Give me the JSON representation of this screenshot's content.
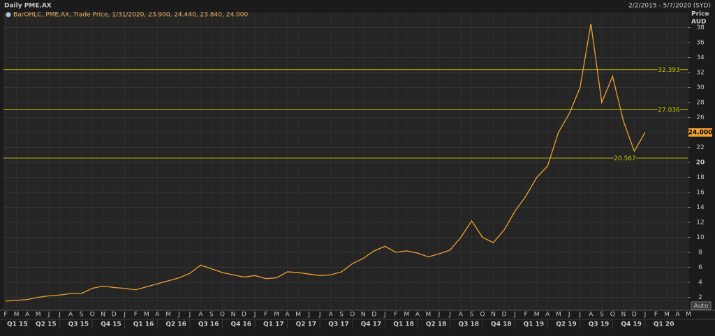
{
  "chart_data": {
    "type": "line",
    "title": "Daily PME.AX",
    "date_range": "2/2/2015 - 5/7/2020 (SYD)",
    "legend_text": "BarOHLC, PME.AX, Trade Price, 1/31/2020, 23.900, 24.440, 23.840, 24.000",
    "y_axis_label": [
      "Price",
      "AUD"
    ],
    "auto_button": "Auto",
    "x": [
      "2015-02",
      "2015-03",
      "2015-04",
      "2015-05",
      "2015-06",
      "2015-07",
      "2015-08",
      "2015-09",
      "2015-10",
      "2015-11",
      "2015-12",
      "2016-01",
      "2016-02",
      "2016-03",
      "2016-04",
      "2016-05",
      "2016-06",
      "2016-07",
      "2016-08",
      "2016-09",
      "2016-10",
      "2016-11",
      "2016-12",
      "2017-01",
      "2017-02",
      "2017-03",
      "2017-04",
      "2017-05",
      "2017-06",
      "2017-07",
      "2017-08",
      "2017-09",
      "2017-10",
      "2017-11",
      "2017-12",
      "2018-01",
      "2018-02",
      "2018-03",
      "2018-04",
      "2018-05",
      "2018-06",
      "2018-07",
      "2018-08",
      "2018-09",
      "2018-10",
      "2018-11",
      "2018-12",
      "2019-01",
      "2019-02",
      "2019-03",
      "2019-04",
      "2019-05",
      "2019-06",
      "2019-07",
      "2019-08",
      "2019-09",
      "2019-10",
      "2019-11",
      "2019-12",
      "2020-01"
    ],
    "series": [
      {
        "name": "PME.AX",
        "color": "#f0a030",
        "values": [
          1.5,
          1.6,
          1.7,
          2.0,
          2.2,
          2.3,
          2.5,
          2.5,
          3.2,
          3.5,
          3.3,
          3.2,
          3.0,
          3.4,
          3.8,
          4.2,
          4.6,
          5.2,
          6.3,
          5.8,
          5.3,
          5.0,
          4.7,
          4.9,
          4.5,
          4.6,
          5.4,
          5.3,
          5.1,
          4.9,
          5.0,
          5.4,
          6.5,
          7.2,
          8.2,
          8.8,
          8.0,
          8.2,
          7.9,
          7.4,
          7.8,
          8.3,
          10.0,
          12.2,
          10.0,
          9.3,
          11.0,
          13.5,
          15.5,
          18.0,
          19.5,
          24.0,
          26.5,
          30.0,
          38.5,
          28.0,
          31.5,
          25.5,
          21.5,
          24.0
        ],
        "value_labels": [
          null,
          null,
          null,
          null,
          null,
          null,
          null,
          null,
          null,
          null,
          null,
          null,
          null,
          null,
          null,
          null,
          null,
          null,
          null,
          null,
          null,
          null,
          null,
          null,
          null,
          null,
          null,
          null,
          null,
          null,
          null,
          null,
          null,
          null,
          null,
          null,
          null,
          null,
          null,
          null,
          null,
          null,
          null,
          null,
          null,
          null,
          null,
          null,
          null,
          null,
          null,
          null,
          null,
          null,
          null,
          null,
          null,
          null,
          null,
          "24.000"
        ]
      }
    ],
    "xlim": [
      "2015-02",
      "2020-05"
    ],
    "xticks": [
      {
        "value": "2015-02",
        "label": "F"
      },
      {
        "value": "2015-03",
        "label": "M"
      },
      {
        "value": "2015-04",
        "label": "A"
      },
      {
        "value": "2015-05",
        "label": "M"
      },
      {
        "value": "2015-06",
        "label": "J"
      },
      {
        "value": "2015-07",
        "label": "J"
      },
      {
        "value": "2015-08",
        "label": "A"
      },
      {
        "value": "2015-09",
        "label": "S"
      },
      {
        "value": "2015-10",
        "label": "O"
      },
      {
        "value": "2015-11",
        "label": "N"
      },
      {
        "value": "2015-12",
        "label": "D"
      },
      {
        "value": "2016-01",
        "label": "J"
      },
      {
        "value": "2016-02",
        "label": "F"
      },
      {
        "value": "2016-03",
        "label": "M"
      },
      {
        "value": "2016-04",
        "label": "A"
      },
      {
        "value": "2016-05",
        "label": "M"
      },
      {
        "value": "2016-06",
        "label": "J"
      },
      {
        "value": "2016-07",
        "label": "J"
      },
      {
        "value": "2016-08",
        "label": "A"
      },
      {
        "value": "2016-09",
        "label": "S"
      },
      {
        "value": "2016-10",
        "label": "O"
      },
      {
        "value": "2016-11",
        "label": "N"
      },
      {
        "value": "2016-12",
        "label": "D"
      },
      {
        "value": "2017-01",
        "label": "J"
      },
      {
        "value": "2017-02",
        "label": "F"
      },
      {
        "value": "2017-03",
        "label": "M"
      },
      {
        "value": "2017-04",
        "label": "A"
      },
      {
        "value": "2017-05",
        "label": "M"
      },
      {
        "value": "2017-06",
        "label": "J"
      },
      {
        "value": "2017-07",
        "label": "J"
      },
      {
        "value": "2017-08",
        "label": "A"
      },
      {
        "value": "2017-09",
        "label": "S"
      },
      {
        "value": "2017-10",
        "label": "O"
      },
      {
        "value": "2017-11",
        "label": "N"
      },
      {
        "value": "2017-12",
        "label": "D"
      },
      {
        "value": "2018-01",
        "label": "J"
      },
      {
        "value": "2018-02",
        "label": "F"
      },
      {
        "value": "2018-03",
        "label": "M"
      },
      {
        "value": "2018-04",
        "label": "A"
      },
      {
        "value": "2018-05",
        "label": "M"
      },
      {
        "value": "2018-06",
        "label": "J"
      },
      {
        "value": "2018-07",
        "label": "J"
      },
      {
        "value": "2018-08",
        "label": "A"
      },
      {
        "value": "2018-09",
        "label": "S"
      },
      {
        "value": "2018-10",
        "label": "O"
      },
      {
        "value": "2018-11",
        "label": "N"
      },
      {
        "value": "2018-12",
        "label": "D"
      },
      {
        "value": "2019-01",
        "label": "J"
      },
      {
        "value": "2019-02",
        "label": "F"
      },
      {
        "value": "2019-03",
        "label": "M"
      },
      {
        "value": "2019-04",
        "label": "A"
      },
      {
        "value": "2019-05",
        "label": "M"
      },
      {
        "value": "2019-06",
        "label": "J"
      },
      {
        "value": "2019-07",
        "label": "J"
      },
      {
        "value": "2019-08",
        "label": "A"
      },
      {
        "value": "2019-09",
        "label": "S"
      },
      {
        "value": "2019-10",
        "label": "O"
      },
      {
        "value": "2019-11",
        "label": "N"
      },
      {
        "value": "2019-12",
        "label": "D"
      },
      {
        "value": "2020-01",
        "label": "J"
      },
      {
        "value": "2020-02",
        "label": "F"
      },
      {
        "value": "2020-03",
        "label": "M"
      },
      {
        "value": "2020-04",
        "label": "A"
      },
      {
        "value": "2020-05",
        "label": "M"
      }
    ],
    "quarters": [
      {
        "value": "2015-01",
        "label": "Q1 15"
      },
      {
        "value": "2015-04",
        "label": "Q2 15"
      },
      {
        "value": "2015-07",
        "label": "Q3 15"
      },
      {
        "value": "2015-10",
        "label": "Q4 15"
      },
      {
        "value": "2016-01",
        "label": "Q1 16"
      },
      {
        "value": "2016-04",
        "label": "Q2 16"
      },
      {
        "value": "2016-07",
        "label": "Q3 16"
      },
      {
        "value": "2016-10",
        "label": "Q4 16"
      },
      {
        "value": "2017-01",
        "label": "Q1 17"
      },
      {
        "value": "2017-04",
        "label": "Q2 17"
      },
      {
        "value": "2017-07",
        "label": "Q3 17"
      },
      {
        "value": "2017-10",
        "label": "Q4 17"
      },
      {
        "value": "2018-01",
        "label": "Q1 18"
      },
      {
        "value": "2018-04",
        "label": "Q2 18"
      },
      {
        "value": "2018-07",
        "label": "Q3 18"
      },
      {
        "value": "2018-10",
        "label": "Q4 18"
      },
      {
        "value": "2019-01",
        "label": "Q1 19"
      },
      {
        "value": "2019-04",
        "label": "Q2 19"
      },
      {
        "value": "2019-07",
        "label": "Q3 19"
      },
      {
        "value": "2019-10",
        "label": "Q4 19"
      },
      {
        "value": "2020-01",
        "label": "Q1 20"
      }
    ],
    "ylim": [
      0,
      40
    ],
    "yticks": [
      2,
      4,
      6,
      8,
      10,
      12,
      14,
      16,
      18,
      20,
      22,
      24,
      26,
      28,
      30,
      32,
      34,
      36,
      38
    ],
    "levels": [
      32.393,
      27.036,
      20.567
    ],
    "level_color": "#c8c800",
    "grid": true
  }
}
